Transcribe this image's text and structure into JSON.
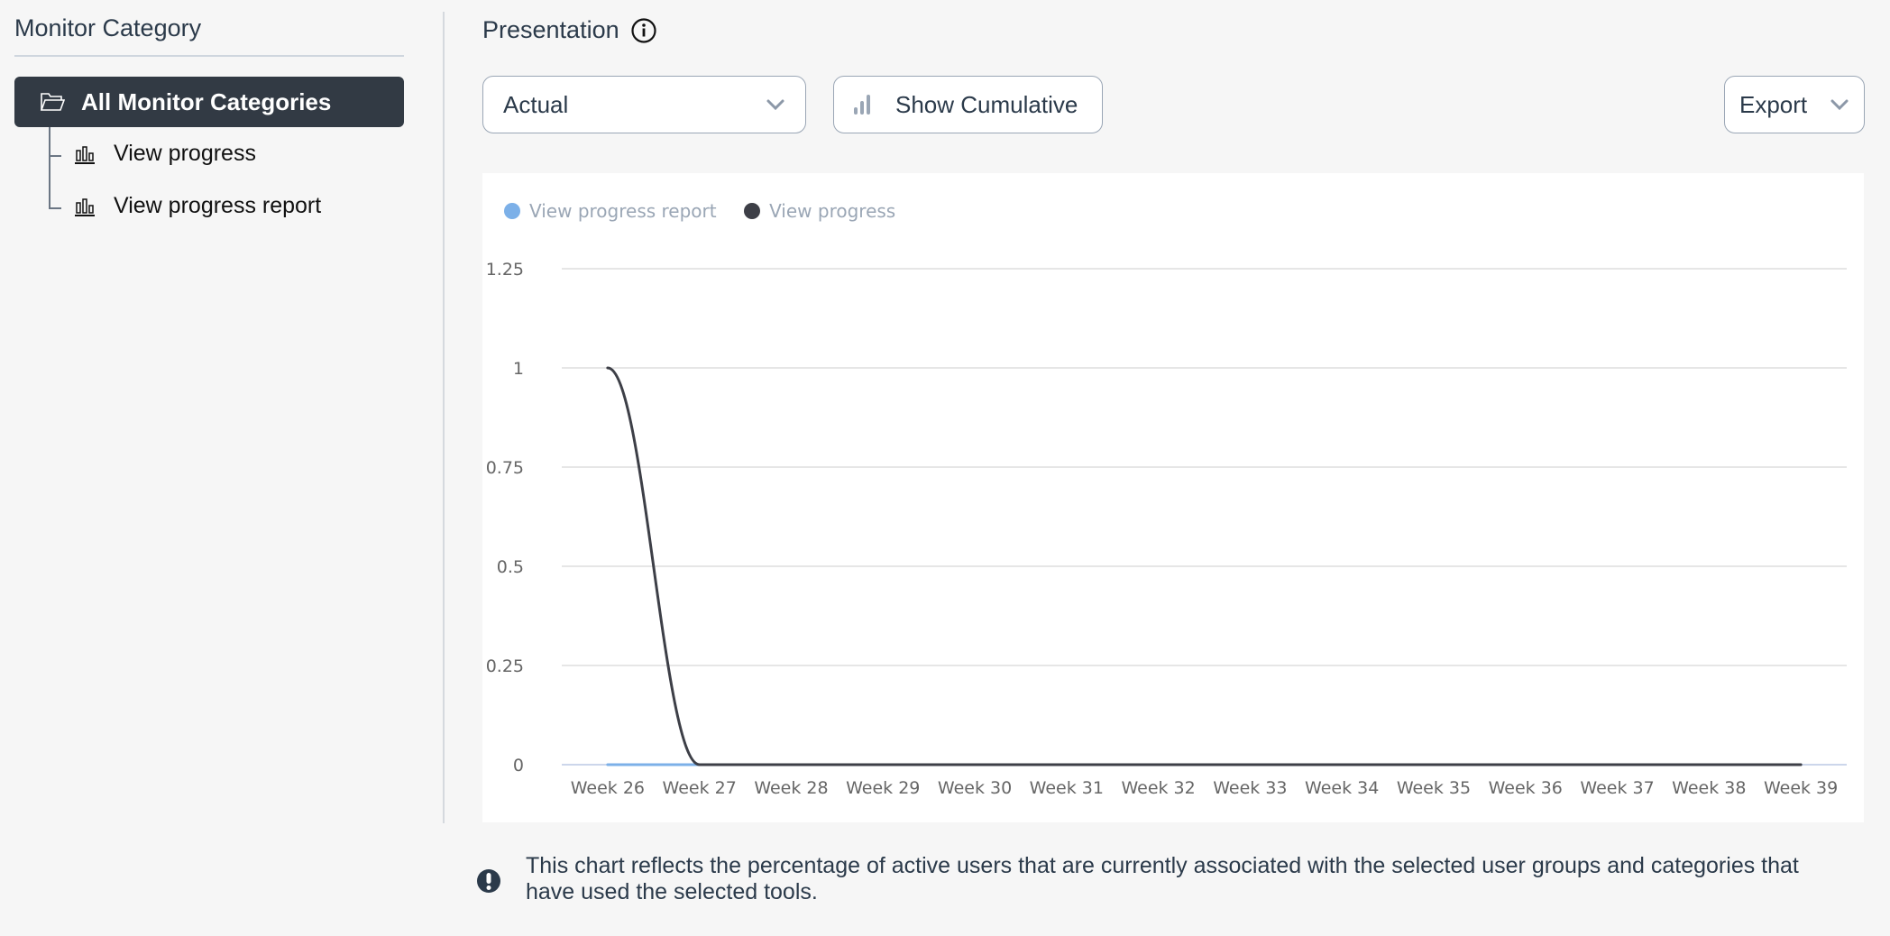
{
  "sidebar": {
    "title": "Monitor Category",
    "root": {
      "label": "All Monitor Categories",
      "icon": "folder-open-icon"
    },
    "items": [
      {
        "label": "View progress",
        "icon": "bar-chart-icon"
      },
      {
        "label": "View progress report",
        "icon": "bar-chart-icon"
      }
    ]
  },
  "presentation": {
    "title": "Presentation",
    "select_value": "Actual",
    "cumulative_label": "Show Cumulative",
    "export_label": "Export"
  },
  "note": "This chart reflects the percentage of active users that are currently associated with the selected user groups and categories that have used the selected tools.",
  "chart_data": {
    "type": "line",
    "title": "",
    "xlabel": "",
    "ylabel": "",
    "categories": [
      "Week 26",
      "Week 27",
      "Week 28",
      "Week 29",
      "Week 30",
      "Week 31",
      "Week 32",
      "Week 33",
      "Week 34",
      "Week 35",
      "Week 36",
      "Week 37",
      "Week 38",
      "Week 39"
    ],
    "ylim": [
      0,
      1.25
    ],
    "yticks": [
      "0",
      "0.25",
      "0.5",
      "0.75",
      "1",
      "1.25"
    ],
    "grid": true,
    "legend_position": "top-left",
    "series": [
      {
        "name": "View progress report",
        "color": "#7cb0e8",
        "values": [
          0,
          0,
          0,
          0,
          0,
          0,
          0,
          0,
          0,
          0,
          0,
          0,
          0,
          0
        ]
      },
      {
        "name": "View progress",
        "color": "#3d3f47",
        "values": [
          1,
          0,
          0,
          0,
          0,
          0,
          0,
          0,
          0,
          0,
          0,
          0,
          0,
          0
        ]
      }
    ]
  }
}
